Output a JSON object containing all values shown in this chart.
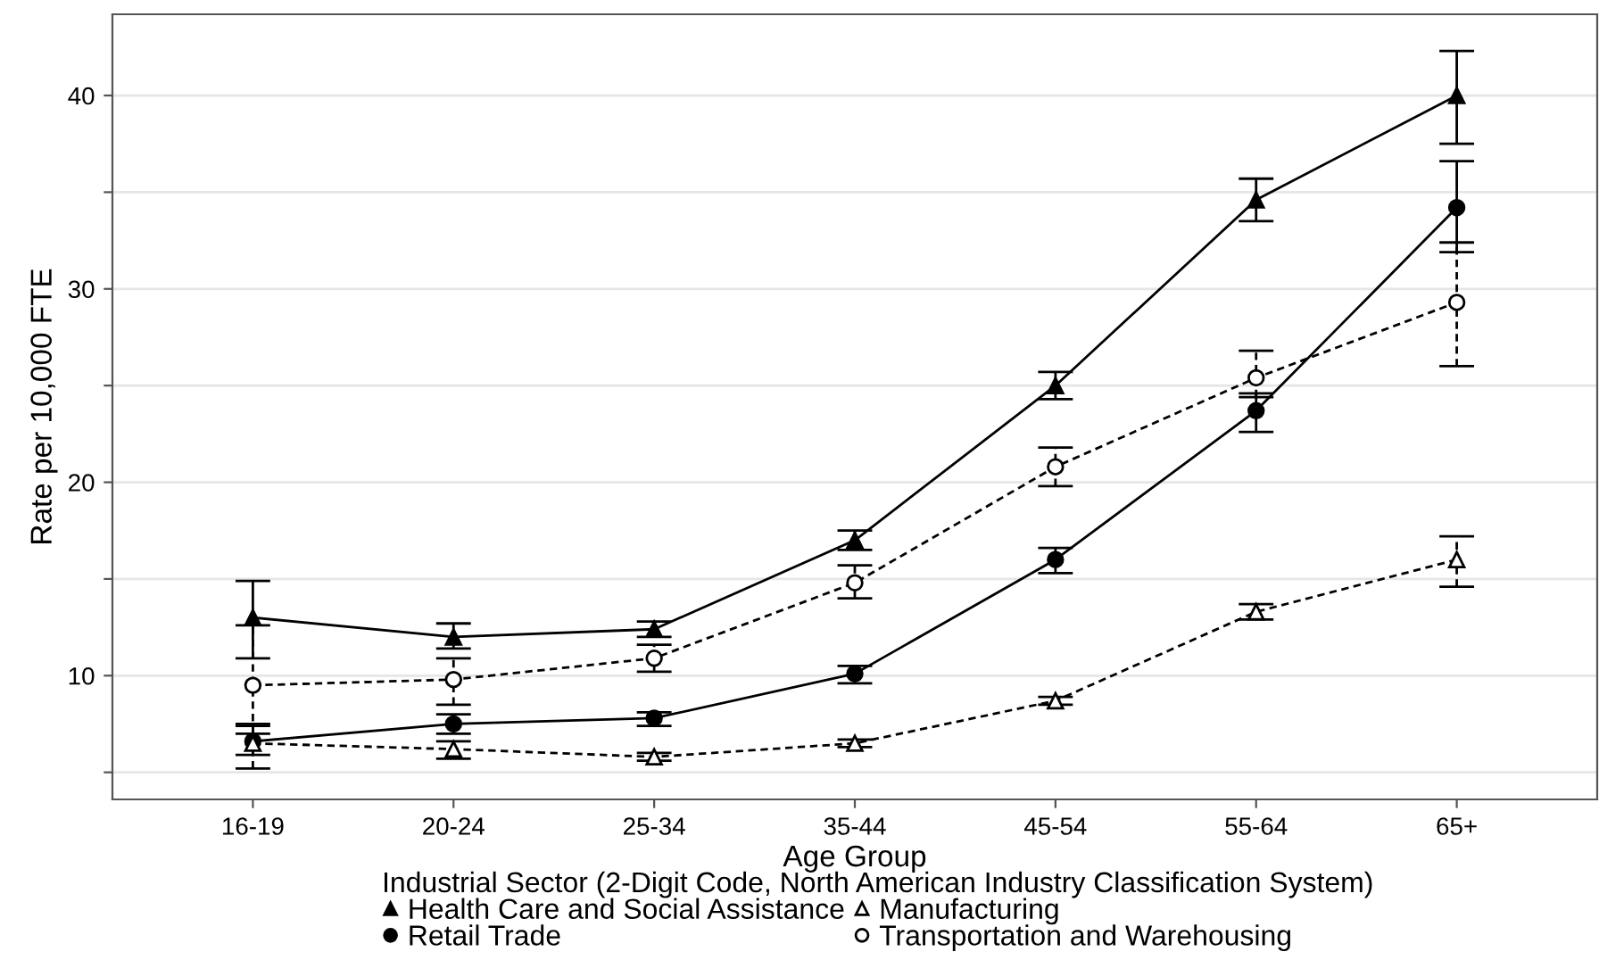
{
  "chart_data": {
    "type": "line",
    "xlabel": "Age Group",
    "ylabel": "Rate per 10,000 FTE",
    "legend_title": "Industrial Sector (2-Digit Code, North American Industry Classification System)",
    "legend": "bottom",
    "grid": "y",
    "categories": [
      "16-19",
      "20-24",
      "25-34",
      "35-44",
      "45-54",
      "55-64",
      "65+"
    ],
    "ylim": [
      3.6,
      44.2
    ],
    "yticks": [
      {
        "value": 5,
        "label": null
      },
      10,
      {
        "value": 15,
        "label": null
      },
      20,
      {
        "value": 25,
        "label": null
      },
      30,
      {
        "value": 35,
        "label": null
      },
      40
    ],
    "series": [
      {
        "name": "Health Care and Social Assistance",
        "color": "#000000",
        "marker": "triangle",
        "line_style": "solid",
        "values": [
          13.0,
          12.0,
          12.4,
          17.0,
          25.0,
          34.6,
          40.0
        ],
        "errors": [
          [
            10.9,
            14.9
          ],
          [
            11.4,
            12.7
          ],
          [
            12.0,
            12.8
          ],
          [
            16.5,
            17.5
          ],
          [
            24.3,
            25.7
          ],
          [
            33.5,
            35.7
          ],
          [
            37.5,
            42.3
          ]
        ]
      },
      {
        "name": "Retail Trade",
        "color": "#000000",
        "marker": "circle",
        "line_style": "solid",
        "values": [
          6.6,
          7.5,
          7.8,
          10.1,
          16.0,
          23.7,
          34.2
        ],
        "errors": [
          [
            5.9,
            7.4
          ],
          [
            7.0,
            8.0
          ],
          [
            7.4,
            8.1
          ],
          [
            9.6,
            10.5
          ],
          [
            15.3,
            16.6
          ],
          [
            22.6,
            24.6
          ],
          [
            31.9,
            36.6
          ]
        ]
      },
      {
        "name": "Manufacturing",
        "color": "#000000",
        "marker": "triangle",
        "line_style": "dashed",
        "values": [
          6.5,
          6.2,
          5.8,
          6.5,
          8.7,
          13.3,
          16.0
        ],
        "errors": [
          [
            5.2,
            7.5
          ],
          [
            5.7,
            6.6
          ],
          [
            5.6,
            6.0
          ],
          [
            6.3,
            6.7
          ],
          [
            8.5,
            8.9
          ],
          [
            12.9,
            13.7
          ],
          [
            14.6,
            17.2
          ]
        ]
      },
      {
        "name": "Transportation and Warehousing",
        "color": "#000000",
        "marker": "circle",
        "line_style": "dashed",
        "values": [
          9.5,
          9.8,
          10.9,
          14.8,
          20.8,
          25.4,
          29.3
        ],
        "errors": [
          [
            7.0,
            12.6
          ],
          [
            8.5,
            10.9
          ],
          [
            10.2,
            11.6
          ],
          [
            14.0,
            15.7
          ],
          [
            19.8,
            21.8
          ],
          [
            24.4,
            26.8
          ],
          [
            26.0,
            32.4
          ]
        ]
      }
    ]
  }
}
